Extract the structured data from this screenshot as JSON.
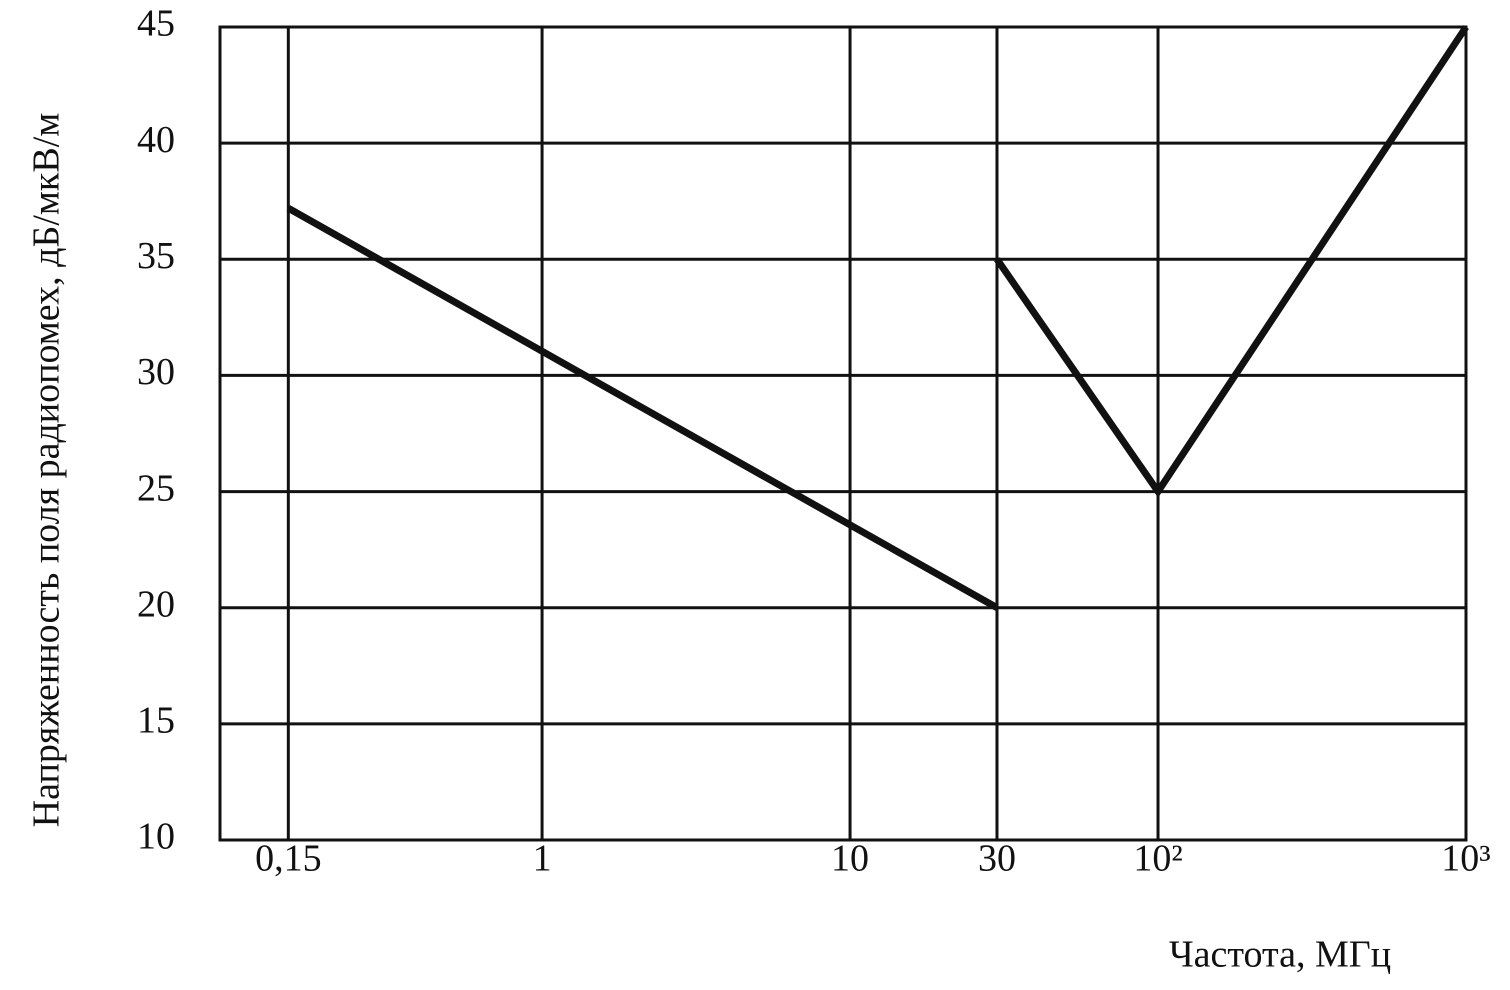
{
  "chart_data": {
    "type": "line",
    "y_label": "Напряженность поля радиопомех, дБ/мкВ/м",
    "x_label": "Частота, МГц",
    "log_x": true,
    "grid": true,
    "color": "#111111",
    "x": [
      0.15,
      30,
      null,
      30,
      100,
      1000
    ],
    "values": [
      37.2,
      20,
      null,
      35,
      25,
      45
    ],
    "xlim": [
      0.09,
      1000
    ],
    "xticks": [
      {
        "value": 0.15,
        "label": "0,15"
      },
      1,
      10,
      30,
      {
        "value": 100,
        "label": "10²"
      },
      {
        "value": 1000,
        "label": "10³"
      }
    ],
    "ylim": [
      10,
      45
    ],
    "yticks": [
      10,
      15,
      20,
      25,
      30,
      35,
      40,
      45
    ]
  }
}
